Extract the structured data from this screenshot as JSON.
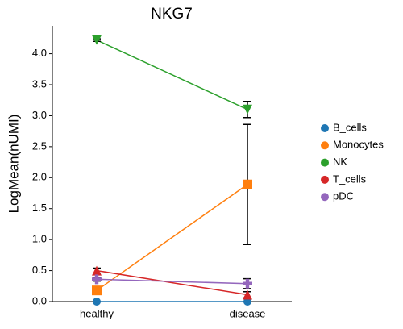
{
  "chart_data": {
    "type": "line",
    "title": "NKG7",
    "ylabel": "LogMean(nUMI)",
    "categories": [
      "healthy",
      "disease"
    ],
    "series": [
      {
        "name": "B_cells",
        "color": "#1f77b4",
        "marker": "o",
        "values": [
          0,
          0
        ],
        "errors": [
          0,
          0
        ]
      },
      {
        "name": "Monocytes",
        "color": "#ff7f0e",
        "marker": "s",
        "values": [
          0.18,
          1.89
        ],
        "errors": [
          0.03,
          0.97
        ]
      },
      {
        "name": "NK",
        "color": "#2ca02c",
        "marker": "v",
        "values": [
          4.22,
          3.1
        ],
        "errors": [
          0.02,
          0.13
        ]
      },
      {
        "name": "T_cells",
        "color": "#d62728",
        "marker": "^",
        "values": [
          0.5,
          0.11
        ],
        "errors": [
          0.04,
          0.05
        ]
      },
      {
        "name": "pDC",
        "color": "#9467bd",
        "marker": "P",
        "values": [
          0.36,
          0.29
        ],
        "errors": [
          0.03,
          0.08
        ]
      }
    ],
    "ylim": [
      0,
      4.45
    ],
    "yticks": [
      {
        "value": 0,
        "label": "0.0"
      },
      0.5,
      {
        "value": 1,
        "label": "1.0"
      },
      1.5,
      {
        "value": 2,
        "label": "2.0"
      },
      2.5,
      {
        "value": 3,
        "label": "3.0"
      },
      3.5,
      {
        "value": 4,
        "label": "4.0"
      }
    ]
  }
}
